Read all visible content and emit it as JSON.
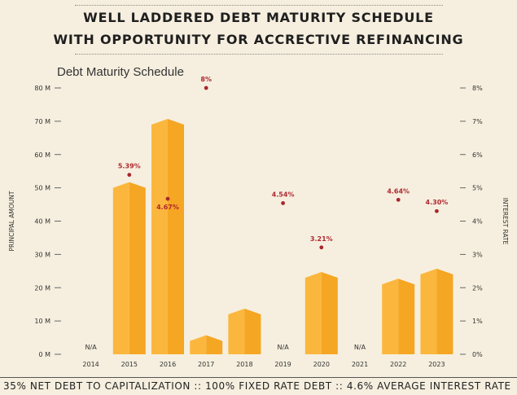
{
  "header": {
    "title_line1": "WELL LADDERED DEBT MATURITY SCHEDULE",
    "title_line2": "WITH OPPORTUNITY FOR ACCRECTIVE REFINANCING"
  },
  "footer": {
    "text": "35% NET DEBT TO CAPITALIZATION :: 100% FIXED RATE DEBT :: 4.6% AVERAGE INTEREST RATE"
  },
  "colors": {
    "bar_light": "#fbb73d",
    "bar_dark": "#f5a623",
    "rate_dot": "#a8262e",
    "rate_label": "#b0282f",
    "axis_text": "#333333",
    "grid": "#bfbfbf"
  },
  "chart_data": {
    "type": "bar",
    "title": "Debt Maturity Schedule",
    "ylabel": "PRINCIPAL AMOUNT",
    "y2label": "INTEREST RATE",
    "ylim": [
      0,
      80
    ],
    "y2lim": [
      0,
      8
    ],
    "y_ticks": [
      "0 M",
      "10 M",
      "20 M",
      "30 M",
      "40 M",
      "50 M",
      "60 M",
      "70 M",
      "80 M"
    ],
    "y2_ticks": [
      "0%",
      "1%",
      "2%",
      "3%",
      "4%",
      "5%",
      "6%",
      "7%",
      "8%"
    ],
    "categories": [
      "2014",
      "2015",
      "2016",
      "2017",
      "2018",
      "2019",
      "2020",
      "2021",
      "2022",
      "2023"
    ],
    "series": [
      {
        "name": "Principal Amount",
        "values": [
          null,
          50,
          69,
          4,
          12,
          null,
          23,
          null,
          21,
          24
        ]
      },
      {
        "name": "Interest Rate",
        "values": [
          null,
          5.39,
          4.67,
          8.0,
          null,
          4.54,
          3.21,
          null,
          4.64,
          4.3
        ]
      }
    ],
    "rate_labels": [
      "",
      "5.39%",
      "4.67%",
      "8%",
      "",
      "4.54%",
      "3.21%",
      "",
      "4.64%",
      "4.30%"
    ],
    "na_labels": [
      "N/A",
      "",
      "",
      "",
      "",
      "N/A",
      "",
      "N/A",
      "",
      ""
    ],
    "grid": false
  }
}
